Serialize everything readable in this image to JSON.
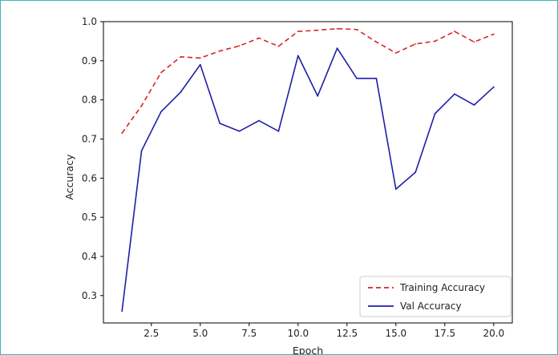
{
  "chart_data": {
    "type": "line",
    "xlabel": "Epoch",
    "ylabel": "Accuracy",
    "xlim": [
      0.05,
      20.95
    ],
    "ylim": [
      0.23,
      1.0
    ],
    "xticks": [
      "2.5",
      "5.0",
      "7.5",
      "10.0",
      "12.5",
      "15.0",
      "17.5",
      "20.0"
    ],
    "xtick_values": [
      2.5,
      5.0,
      7.5,
      10.0,
      12.5,
      15.0,
      17.5,
      20.0
    ],
    "yticks": [
      "0.3",
      "0.4",
      "0.5",
      "0.6",
      "0.7",
      "0.8",
      "0.9",
      "1.0"
    ],
    "ytick_values": [
      0.3,
      0.4,
      0.5,
      0.6,
      0.7,
      0.8,
      0.9,
      1.0
    ],
    "grid": false,
    "legend_position": "lower-right",
    "x": [
      1,
      2,
      3,
      4,
      5,
      6,
      7,
      8,
      9,
      10,
      11,
      12,
      13,
      14,
      15,
      16,
      17,
      18,
      19,
      20
    ],
    "series": [
      {
        "name": "Training Accuracy",
        "color": "#d62728",
        "style": "dashed",
        "values": [
          0.715,
          0.785,
          0.87,
          0.91,
          0.907,
          0.925,
          0.938,
          0.958,
          0.937,
          0.975,
          0.978,
          0.982,
          0.98,
          0.948,
          0.92,
          0.943,
          0.95,
          0.975,
          0.948,
          0.968
        ]
      },
      {
        "name": "Val Accuracy",
        "color": "#1f1fa8",
        "style": "solid",
        "values": [
          0.26,
          0.67,
          0.77,
          0.82,
          0.89,
          0.74,
          0.72,
          0.747,
          0.72,
          0.913,
          0.81,
          0.932,
          0.855,
          0.855,
          0.572,
          0.615,
          0.765,
          0.815,
          0.787,
          0.833
        ]
      }
    ]
  }
}
